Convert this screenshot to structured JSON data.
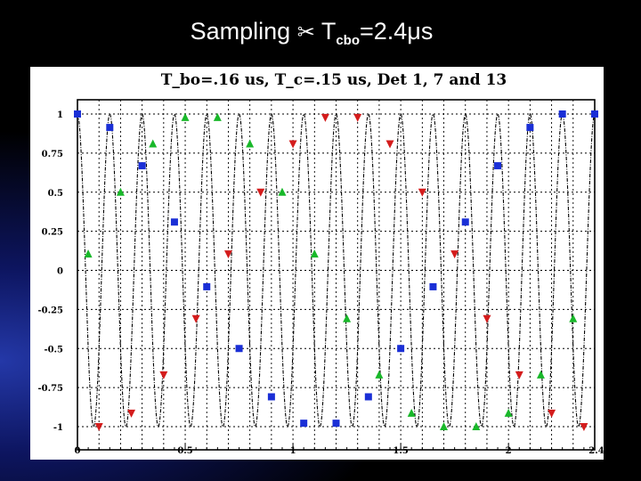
{
  "slide": {
    "title_prefix": "Sampling",
    "title_icon": "scissors-icon",
    "title_main": "T",
    "title_sub": "cbo",
    "title_suffix": "=2.4μs"
  },
  "chart_data": {
    "type": "scatter",
    "title": "T_bo=.16 us, T_c=.15 us, Det 1, 7 and 13",
    "xlim": [
      0,
      2.4
    ],
    "ylim": [
      -1.05,
      1.05
    ],
    "x_ticks": [
      "0",
      "0.5",
      "1",
      "1.5",
      "2",
      "2.4"
    ],
    "y_ticks": [
      "1",
      "0.75",
      "0.5",
      "0.25",
      "0",
      "-0.25",
      "-0.5",
      "-0.75",
      "-1"
    ],
    "grid": true,
    "curve": {
      "function": "cos",
      "period_us": 0.15
    },
    "series": [
      {
        "marker": "square",
        "color": "#1a2fd6",
        "x": [
          0,
          0.15,
          0.3,
          0.45,
          0.6,
          0.75,
          0.9,
          1.05,
          1.2,
          1.35,
          1.5,
          1.65,
          1.8,
          1.95,
          2.1,
          2.25,
          2.4
        ],
        "y": [
          1.0,
          0.914,
          0.669,
          0.309,
          -0.105,
          -0.5,
          -0.809,
          -0.978,
          -0.978,
          -0.809,
          -0.5,
          -0.105,
          0.309,
          0.669,
          0.914,
          1.0,
          1.0
        ]
      },
      {
        "marker": "triangle-up",
        "color": "#19b82a",
        "x": [
          0.05,
          0.2,
          0.35,
          0.5,
          0.65,
          0.8,
          0.95,
          1.1,
          1.25,
          1.4,
          1.55,
          1.7,
          1.85,
          2.0,
          2.15,
          2.3
        ],
        "y": [
          0.105,
          0.5,
          0.809,
          0.978,
          0.978,
          0.809,
          0.5,
          0.105,
          -0.309,
          -0.669,
          -0.914,
          -1.0,
          -1.0,
          -0.914,
          -0.669,
          -0.309
        ]
      },
      {
        "marker": "triangle-down",
        "color": "#d41c1c",
        "x": [
          0.1,
          0.25,
          0.4,
          0.55,
          0.7,
          0.85,
          1.0,
          1.15,
          1.3,
          1.45,
          1.6,
          1.75,
          1.9,
          2.05,
          2.2,
          2.35
        ],
        "y": [
          -1.0,
          -0.914,
          -0.669,
          -0.309,
          0.105,
          0.5,
          0.809,
          0.978,
          0.978,
          0.809,
          0.5,
          0.105,
          -0.309,
          -0.669,
          -0.914,
          -1.0
        ]
      }
    ]
  }
}
